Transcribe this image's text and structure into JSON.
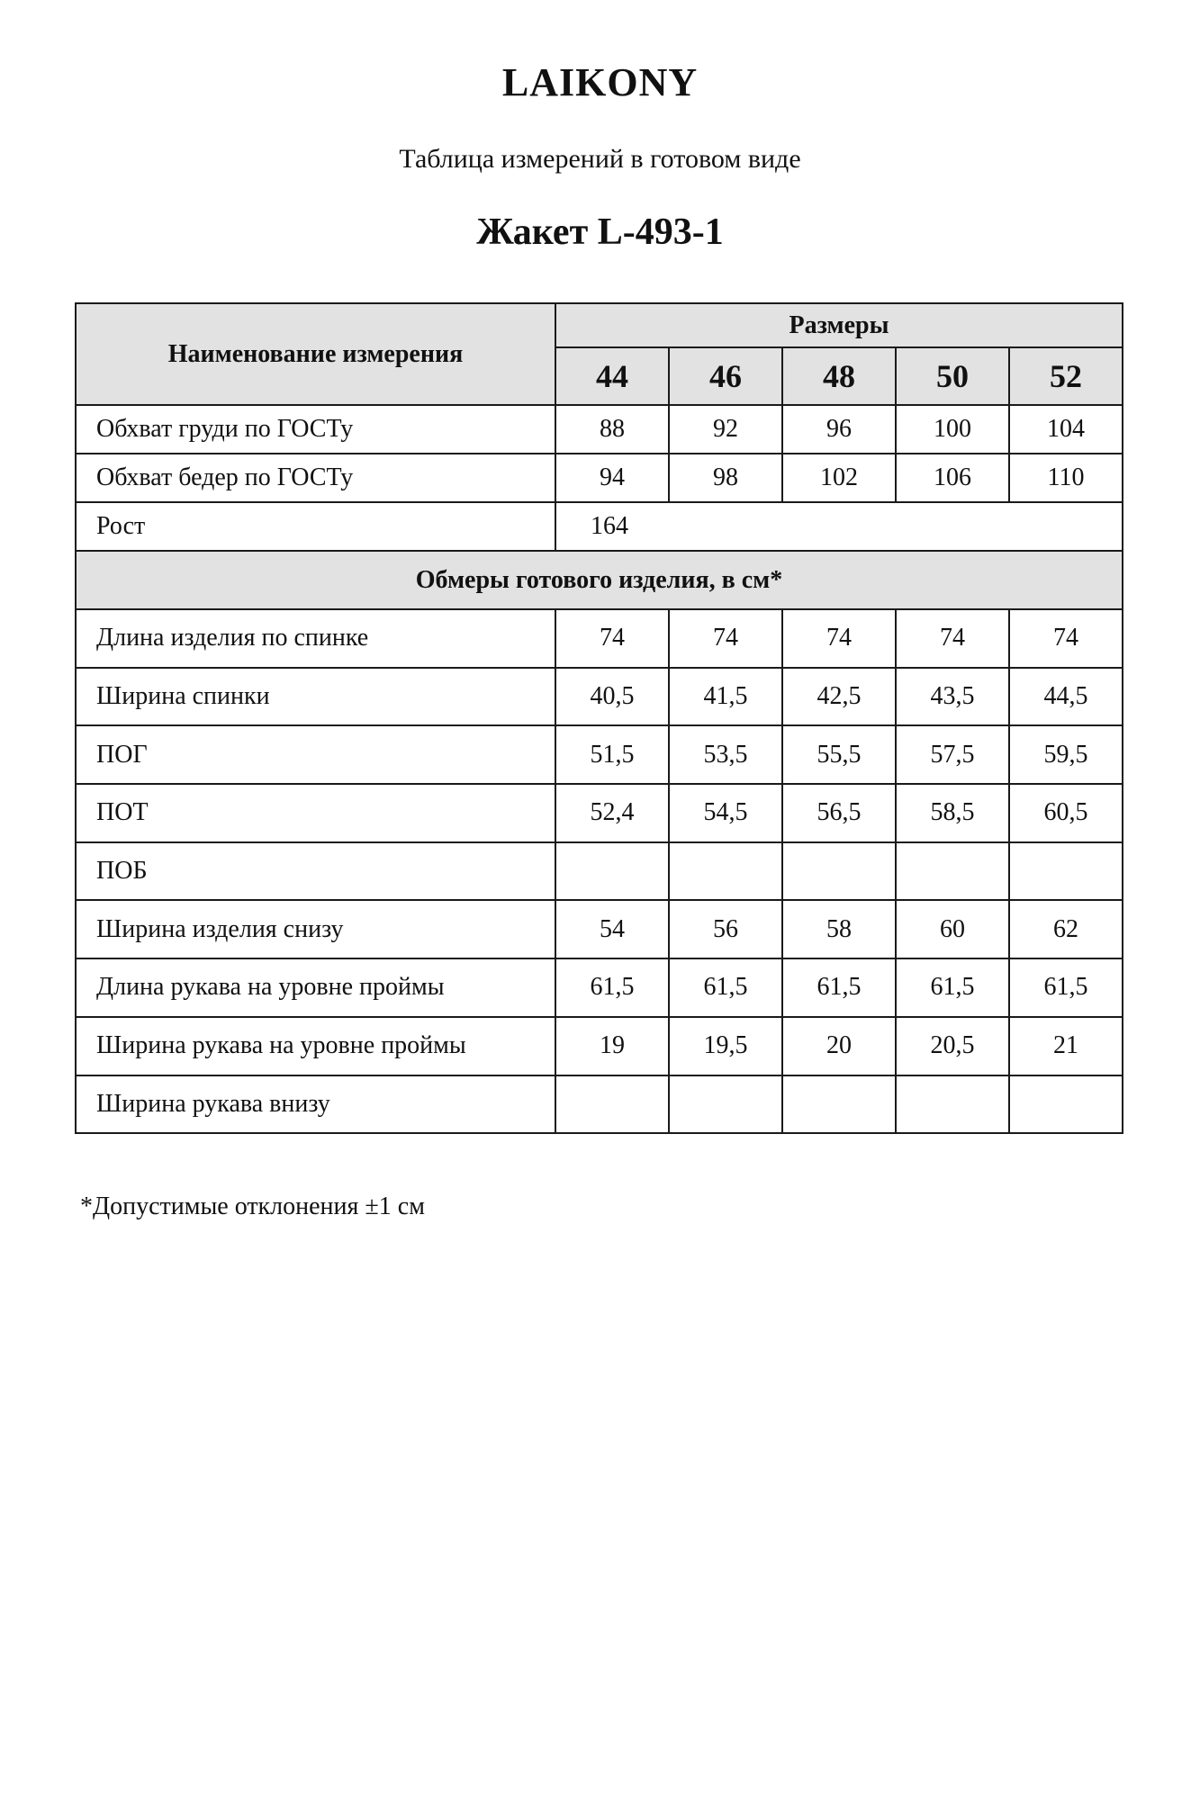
{
  "brand": "LAIKONY",
  "subtitle": "Таблица измерений в готовом виде",
  "title": "Жакет L-493-1",
  "table": {
    "name_header": "Наименование измерения",
    "sizes_header": "Размеры",
    "sizes": [
      "44",
      "46",
      "48",
      "50",
      "52"
    ],
    "body_rows": [
      {
        "name": "Обхват груди по ГОСТу",
        "values": [
          "88",
          "92",
          "96",
          "100",
          "104"
        ]
      },
      {
        "name": "Обхват бедер по ГОСТу",
        "values": [
          "94",
          "98",
          "102",
          "106",
          "110"
        ]
      }
    ],
    "height_row": {
      "name": "Рост",
      "value": "164"
    },
    "section_header": "Обмеры готового изделия, в см*",
    "garment_rows": [
      {
        "name": "Длина изделия по спинке",
        "values": [
          "74",
          "74",
          "74",
          "74",
          "74"
        ]
      },
      {
        "name": "Ширина спинки",
        "values": [
          "40,5",
          "41,5",
          "42,5",
          "43,5",
          "44,5"
        ]
      },
      {
        "name": "ПОГ",
        "values": [
          "51,5",
          "53,5",
          "55,5",
          "57,5",
          "59,5"
        ]
      },
      {
        "name": "ПОТ",
        "values": [
          "52,4",
          "54,5",
          "56,5",
          "58,5",
          "60,5"
        ]
      },
      {
        "name": "ПОБ",
        "values": [
          "",
          "",
          "",
          "",
          ""
        ]
      },
      {
        "name": "Ширина изделия снизу",
        "values": [
          "54",
          "56",
          "58",
          "60",
          "62"
        ]
      },
      {
        "name": "Длина рукава на уровне проймы",
        "values": [
          "61,5",
          "61,5",
          "61,5",
          "61,5",
          "61,5"
        ]
      },
      {
        "name": "Ширина рукава на уровне проймы",
        "values": [
          "19",
          "19,5",
          "20",
          "20,5",
          "21"
        ]
      },
      {
        "name": "Ширина рукава внизу",
        "values": [
          "",
          "",
          "",
          "",
          ""
        ]
      }
    ]
  },
  "footnote": "*Допустимые отклонения ±1 см"
}
